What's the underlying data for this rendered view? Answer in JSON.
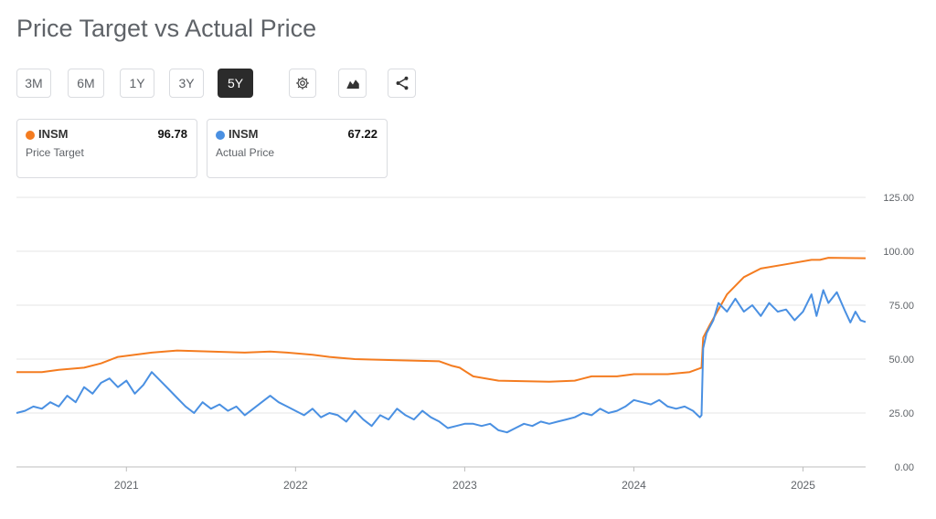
{
  "page": {
    "title": "Price Target vs Actual Price"
  },
  "toolbar": {
    "ranges": [
      "3M",
      "6M",
      "1Y",
      "3Y",
      "5Y"
    ],
    "active_range": "5Y",
    "icons": [
      "gear-icon",
      "chart-type-icon",
      "share-icon"
    ]
  },
  "cards": [
    {
      "symbol": "INSM",
      "value": "96.78",
      "label": "Price Target",
      "color": "#f47c20"
    },
    {
      "symbol": "INSM",
      "value": "67.22",
      "label": "Actual Price",
      "color": "#4a90e2"
    }
  ],
  "chart_data": {
    "type": "line",
    "title": "",
    "xlabel": "",
    "ylabel": "",
    "x_range": [
      2020.35,
      2025.37
    ],
    "ylim": [
      0,
      125
    ],
    "y_ticks": [
      "0.00",
      "25.00",
      "50.00",
      "75.00",
      "100.00",
      "125.00"
    ],
    "x_ticks": [
      "2021",
      "2022",
      "2023",
      "2024",
      "2025"
    ],
    "grid": true,
    "legend": "cards above chart",
    "series": [
      {
        "name": "Price Target",
        "color": "#f47c20",
        "points": [
          [
            2020.35,
            44
          ],
          [
            2020.5,
            44
          ],
          [
            2020.6,
            45
          ],
          [
            2020.75,
            46
          ],
          [
            2020.85,
            48
          ],
          [
            2020.95,
            51
          ],
          [
            2021.05,
            52
          ],
          [
            2021.15,
            53
          ],
          [
            2021.3,
            54
          ],
          [
            2021.5,
            53.5
          ],
          [
            2021.7,
            53
          ],
          [
            2021.85,
            53.5
          ],
          [
            2021.95,
            53
          ],
          [
            2022.1,
            52
          ],
          [
            2022.2,
            51
          ],
          [
            2022.35,
            50
          ],
          [
            2022.6,
            49.5
          ],
          [
            2022.85,
            49
          ],
          [
            2022.92,
            47
          ],
          [
            2022.97,
            46
          ],
          [
            2023.05,
            42
          ],
          [
            2023.2,
            40
          ],
          [
            2023.5,
            39.5
          ],
          [
            2023.65,
            40
          ],
          [
            2023.75,
            42
          ],
          [
            2023.9,
            42
          ],
          [
            2024.0,
            43
          ],
          [
            2024.2,
            43
          ],
          [
            2024.33,
            44
          ],
          [
            2024.4,
            46
          ],
          [
            2024.41,
            60
          ],
          [
            2024.45,
            66
          ],
          [
            2024.55,
            80
          ],
          [
            2024.65,
            88
          ],
          [
            2024.75,
            92
          ],
          [
            2024.9,
            94
          ],
          [
            2025.05,
            96
          ],
          [
            2025.1,
            96
          ],
          [
            2025.15,
            97
          ],
          [
            2025.37,
            96.8
          ]
        ]
      },
      {
        "name": "Actual Price",
        "color": "#4a90e2",
        "points": [
          [
            2020.35,
            25
          ],
          [
            2020.4,
            26
          ],
          [
            2020.45,
            28
          ],
          [
            2020.5,
            27
          ],
          [
            2020.55,
            30
          ],
          [
            2020.6,
            28
          ],
          [
            2020.65,
            33
          ],
          [
            2020.7,
            30
          ],
          [
            2020.75,
            37
          ],
          [
            2020.8,
            34
          ],
          [
            2020.85,
            39
          ],
          [
            2020.9,
            41
          ],
          [
            2020.95,
            37
          ],
          [
            2021.0,
            40
          ],
          [
            2021.05,
            34
          ],
          [
            2021.1,
            38
          ],
          [
            2021.15,
            44
          ],
          [
            2021.2,
            40
          ],
          [
            2021.25,
            36
          ],
          [
            2021.3,
            32
          ],
          [
            2021.35,
            28
          ],
          [
            2021.4,
            25
          ],
          [
            2021.45,
            30
          ],
          [
            2021.5,
            27
          ],
          [
            2021.55,
            29
          ],
          [
            2021.6,
            26
          ],
          [
            2021.65,
            28
          ],
          [
            2021.7,
            24
          ],
          [
            2021.75,
            27
          ],
          [
            2021.8,
            30
          ],
          [
            2021.85,
            33
          ],
          [
            2021.9,
            30
          ],
          [
            2021.95,
            28
          ],
          [
            2022.0,
            26
          ],
          [
            2022.05,
            24
          ],
          [
            2022.1,
            27
          ],
          [
            2022.15,
            23
          ],
          [
            2022.2,
            25
          ],
          [
            2022.25,
            24
          ],
          [
            2022.3,
            21
          ],
          [
            2022.35,
            26
          ],
          [
            2022.4,
            22
          ],
          [
            2022.45,
            19
          ],
          [
            2022.5,
            24
          ],
          [
            2022.55,
            22
          ],
          [
            2022.6,
            27
          ],
          [
            2022.65,
            24
          ],
          [
            2022.7,
            22
          ],
          [
            2022.75,
            26
          ],
          [
            2022.8,
            23
          ],
          [
            2022.85,
            21
          ],
          [
            2022.9,
            18
          ],
          [
            2022.95,
            19
          ],
          [
            2023.0,
            20
          ],
          [
            2023.05,
            20
          ],
          [
            2023.1,
            19
          ],
          [
            2023.15,
            20
          ],
          [
            2023.2,
            17
          ],
          [
            2023.25,
            16
          ],
          [
            2023.3,
            18
          ],
          [
            2023.35,
            20
          ],
          [
            2023.4,
            19
          ],
          [
            2023.45,
            21
          ],
          [
            2023.5,
            20
          ],
          [
            2023.55,
            21
          ],
          [
            2023.6,
            22
          ],
          [
            2023.65,
            23
          ],
          [
            2023.7,
            25
          ],
          [
            2023.75,
            24
          ],
          [
            2023.8,
            27
          ],
          [
            2023.85,
            25
          ],
          [
            2023.9,
            26
          ],
          [
            2023.95,
            28
          ],
          [
            2024.0,
            31
          ],
          [
            2024.05,
            30
          ],
          [
            2024.1,
            29
          ],
          [
            2024.15,
            31
          ],
          [
            2024.2,
            28
          ],
          [
            2024.25,
            27
          ],
          [
            2024.3,
            28
          ],
          [
            2024.35,
            26
          ],
          [
            2024.39,
            23
          ],
          [
            2024.4,
            24
          ],
          [
            2024.41,
            55
          ],
          [
            2024.43,
            62
          ],
          [
            2024.47,
            68
          ],
          [
            2024.5,
            76
          ],
          [
            2024.55,
            72
          ],
          [
            2024.6,
            78
          ],
          [
            2024.65,
            72
          ],
          [
            2024.7,
            75
          ],
          [
            2024.75,
            70
          ],
          [
            2024.8,
            76
          ],
          [
            2024.85,
            72
          ],
          [
            2024.9,
            73
          ],
          [
            2024.95,
            68
          ],
          [
            2025.0,
            72
          ],
          [
            2025.05,
            80
          ],
          [
            2025.08,
            70
          ],
          [
            2025.12,
            82
          ],
          [
            2025.15,
            76
          ],
          [
            2025.2,
            81
          ],
          [
            2025.25,
            72
          ],
          [
            2025.28,
            67
          ],
          [
            2025.31,
            72
          ],
          [
            2025.34,
            68
          ],
          [
            2025.37,
            67.2
          ]
        ]
      }
    ]
  }
}
